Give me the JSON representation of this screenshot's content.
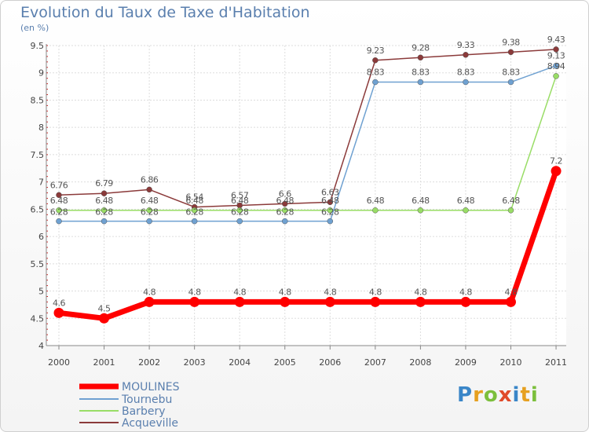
{
  "chart_data": {
    "type": "line",
    "title": "Evolution du Taux de Taxe d'Habitation",
    "ylabel": "(en %)",
    "xlabel": "",
    "x": [
      "2000",
      "2001",
      "2002",
      "2003",
      "2004",
      "2005",
      "2006",
      "2007",
      "2008",
      "2009",
      "2010",
      "2011"
    ],
    "yticks": [
      "4",
      "4.5",
      "5",
      "5.5",
      "6",
      "6.5",
      "7",
      "7.5",
      "8",
      "8.5",
      "9",
      "9.5"
    ],
    "ylim": [
      4,
      9.5
    ],
    "grid": true,
    "legend_position": "bottom-left",
    "series": [
      {
        "name": "MOULINES",
        "color": "#ff0000",
        "values": [
          4.6,
          4.5,
          4.8,
          4.8,
          4.8,
          4.8,
          4.8,
          4.8,
          4.8,
          4.8,
          4.8,
          7.2
        ],
        "labels": [
          "4.6",
          "4.5",
          "4.8",
          "4.8",
          "4.8",
          "4.8",
          "4.8",
          "4.8",
          "4.8",
          "4.8",
          "4.8",
          "7.2"
        ]
      },
      {
        "name": "Tournebu",
        "color": "#6fa1d1",
        "values": [
          6.28,
          6.28,
          6.28,
          6.28,
          6.28,
          6.28,
          6.28,
          8.83,
          8.83,
          8.83,
          8.83,
          9.13
        ],
        "labels": [
          "6.28",
          "6.28",
          "6.28",
          "6.28",
          "6.28",
          "6.28",
          "6.28",
          "8.83",
          "8.83",
          "8.83",
          "8.83",
          "9.13"
        ]
      },
      {
        "name": "Barbery",
        "color": "#99dd66",
        "values": [
          6.48,
          6.48,
          6.48,
          6.48,
          6.48,
          6.48,
          6.48,
          6.48,
          6.48,
          6.48,
          6.48,
          8.94
        ],
        "labels": [
          "6.48",
          "6.48",
          "6.48",
          "6.48",
          "6.48",
          "6.48",
          "6.48",
          "6.48",
          "6.48",
          "6.48",
          "6.48",
          "8.94"
        ]
      },
      {
        "name": "Acqueville",
        "color": "#8b3a3a",
        "values": [
          6.76,
          6.79,
          6.86,
          6.54,
          6.57,
          6.6,
          6.63,
          9.23,
          9.28,
          9.33,
          9.38,
          9.43
        ],
        "labels": [
          "6.76",
          "6.79",
          "6.86",
          "6.54",
          "6.57",
          "6.6",
          "6.63",
          "9.23",
          "9.28",
          "9.33",
          "9.38",
          "9.43"
        ]
      }
    ]
  },
  "logo": {
    "text": "Proxiti",
    "letters": [
      "P",
      "r",
      "o",
      "x",
      "i",
      "t",
      "i"
    ],
    "colors": [
      "#3a86c8",
      "#e6a020",
      "#7cbf3c",
      "#e04a2a",
      "#3a86c8",
      "#e6a020",
      "#7cbf3c"
    ]
  }
}
